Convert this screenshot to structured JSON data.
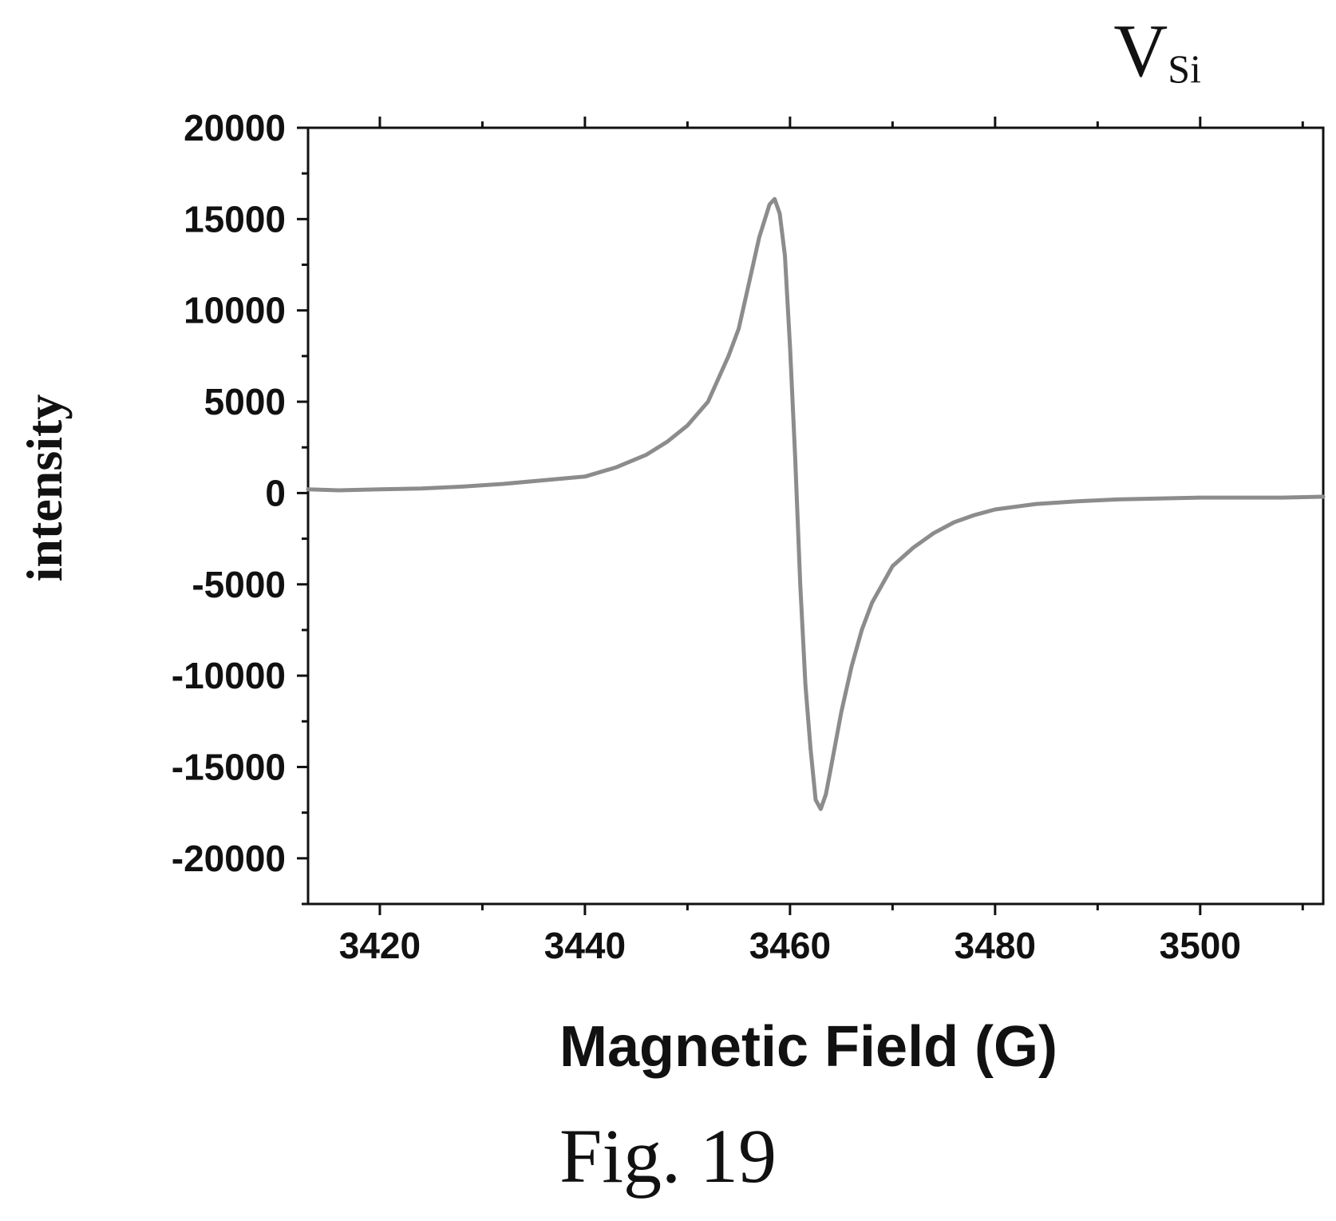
{
  "figure": {
    "caption": "Fig. 19",
    "corner_label": {
      "main": "V",
      "subscript": "Si"
    }
  },
  "chart_data": {
    "type": "line",
    "xlabel": "Magnetic Field (G)",
    "ylabel": "intensity",
    "xlim": [
      3413,
      3512
    ],
    "ylim": [
      -22500,
      20000
    ],
    "x_ticks": [
      3420,
      3440,
      3460,
      3480,
      3500
    ],
    "y_ticks": [
      20000,
      15000,
      10000,
      5000,
      0,
      -5000,
      -10000,
      -15000,
      -20000
    ],
    "grid": false,
    "legend": "none",
    "line_color": "#8c8c8c",
    "series": [
      {
        "x": [
          3413,
          3416,
          3420,
          3424,
          3428,
          3432,
          3436,
          3440,
          3443,
          3446,
          3448,
          3450,
          3452,
          3454,
          3455,
          3456,
          3457,
          3458,
          3458.5,
          3459,
          3459.5,
          3460,
          3460.5,
          3461,
          3461.5,
          3462,
          3462.5,
          3463,
          3463.5,
          3464,
          3465,
          3466,
          3467,
          3468,
          3469,
          3470,
          3472,
          3474,
          3476,
          3478,
          3480,
          3484,
          3488,
          3492,
          3496,
          3500,
          3504,
          3508,
          3512
        ],
        "y": [
          200,
          150,
          200,
          250,
          350,
          500,
          700,
          900,
          1400,
          2100,
          2800,
          3700,
          5000,
          7500,
          9000,
          11500,
          14000,
          15800,
          16100,
          15300,
          13000,
          8000,
          2000,
          -5000,
          -10500,
          -14000,
          -16800,
          -17300,
          -16500,
          -15000,
          -12000,
          -9500,
          -7500,
          -6000,
          -5000,
          -4000,
          -3000,
          -2200,
          -1600,
          -1200,
          -900,
          -600,
          -450,
          -350,
          -300,
          -250,
          -250,
          -250,
          -200
        ]
      }
    ]
  }
}
